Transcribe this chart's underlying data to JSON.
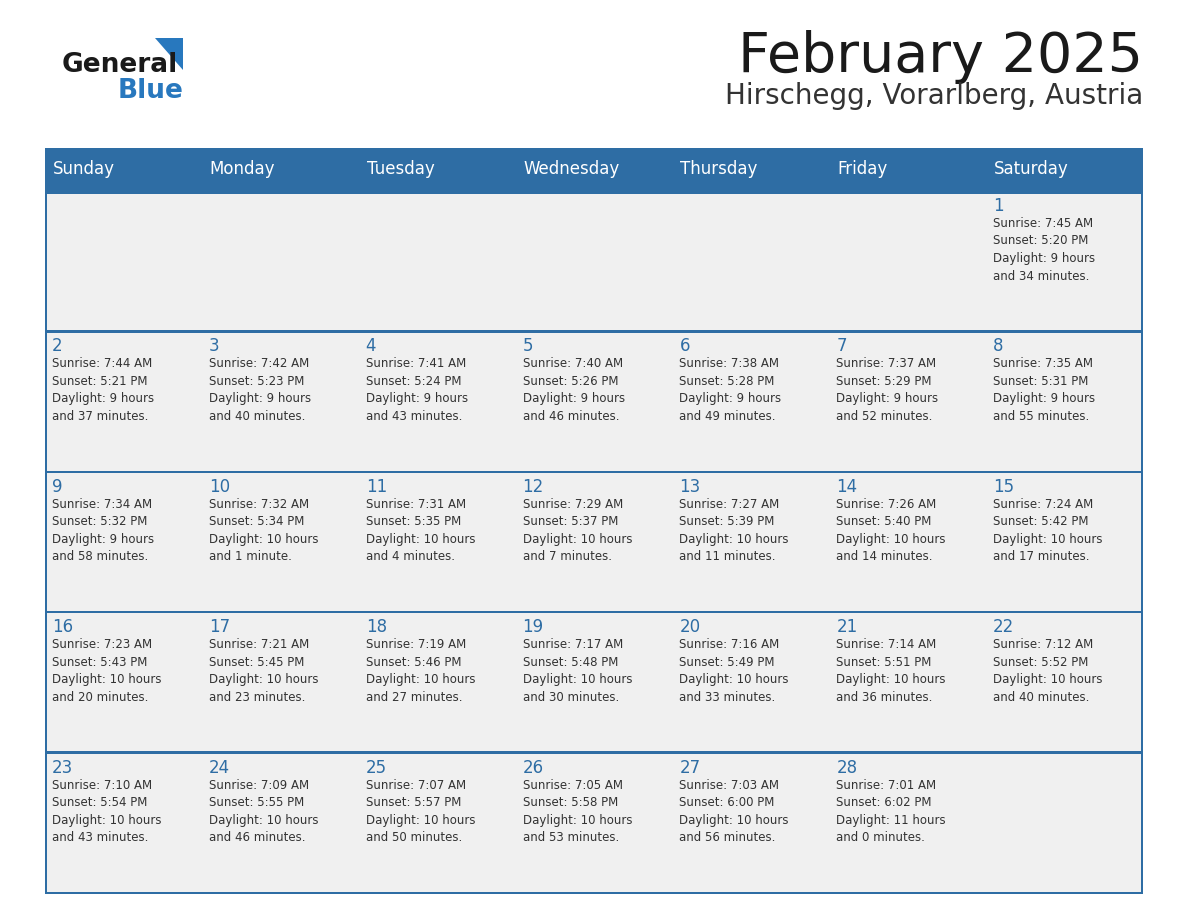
{
  "title": "February 2025",
  "subtitle": "Hirschegg, Vorarlberg, Austria",
  "header_bg_color": "#2E6DA4",
  "header_text_color": "#FFFFFF",
  "cell_bg_color": "#F0F0F0",
  "day_number_color": "#2E6DA4",
  "text_color": "#333333",
  "border_color": "#2E6DA4",
  "days_of_week": [
    "Sunday",
    "Monday",
    "Tuesday",
    "Wednesday",
    "Thursday",
    "Friday",
    "Saturday"
  ],
  "weeks": [
    [
      {
        "day": 0,
        "text": ""
      },
      {
        "day": 0,
        "text": ""
      },
      {
        "day": 0,
        "text": ""
      },
      {
        "day": 0,
        "text": ""
      },
      {
        "day": 0,
        "text": ""
      },
      {
        "day": 0,
        "text": ""
      },
      {
        "day": 1,
        "text": "Sunrise: 7:45 AM\nSunset: 5:20 PM\nDaylight: 9 hours\nand 34 minutes."
      }
    ],
    [
      {
        "day": 2,
        "text": "Sunrise: 7:44 AM\nSunset: 5:21 PM\nDaylight: 9 hours\nand 37 minutes."
      },
      {
        "day": 3,
        "text": "Sunrise: 7:42 AM\nSunset: 5:23 PM\nDaylight: 9 hours\nand 40 minutes."
      },
      {
        "day": 4,
        "text": "Sunrise: 7:41 AM\nSunset: 5:24 PM\nDaylight: 9 hours\nand 43 minutes."
      },
      {
        "day": 5,
        "text": "Sunrise: 7:40 AM\nSunset: 5:26 PM\nDaylight: 9 hours\nand 46 minutes."
      },
      {
        "day": 6,
        "text": "Sunrise: 7:38 AM\nSunset: 5:28 PM\nDaylight: 9 hours\nand 49 minutes."
      },
      {
        "day": 7,
        "text": "Sunrise: 7:37 AM\nSunset: 5:29 PM\nDaylight: 9 hours\nand 52 minutes."
      },
      {
        "day": 8,
        "text": "Sunrise: 7:35 AM\nSunset: 5:31 PM\nDaylight: 9 hours\nand 55 minutes."
      }
    ],
    [
      {
        "day": 9,
        "text": "Sunrise: 7:34 AM\nSunset: 5:32 PM\nDaylight: 9 hours\nand 58 minutes."
      },
      {
        "day": 10,
        "text": "Sunrise: 7:32 AM\nSunset: 5:34 PM\nDaylight: 10 hours\nand 1 minute."
      },
      {
        "day": 11,
        "text": "Sunrise: 7:31 AM\nSunset: 5:35 PM\nDaylight: 10 hours\nand 4 minutes."
      },
      {
        "day": 12,
        "text": "Sunrise: 7:29 AM\nSunset: 5:37 PM\nDaylight: 10 hours\nand 7 minutes."
      },
      {
        "day": 13,
        "text": "Sunrise: 7:27 AM\nSunset: 5:39 PM\nDaylight: 10 hours\nand 11 minutes."
      },
      {
        "day": 14,
        "text": "Sunrise: 7:26 AM\nSunset: 5:40 PM\nDaylight: 10 hours\nand 14 minutes."
      },
      {
        "day": 15,
        "text": "Sunrise: 7:24 AM\nSunset: 5:42 PM\nDaylight: 10 hours\nand 17 minutes."
      }
    ],
    [
      {
        "day": 16,
        "text": "Sunrise: 7:23 AM\nSunset: 5:43 PM\nDaylight: 10 hours\nand 20 minutes."
      },
      {
        "day": 17,
        "text": "Sunrise: 7:21 AM\nSunset: 5:45 PM\nDaylight: 10 hours\nand 23 minutes."
      },
      {
        "day": 18,
        "text": "Sunrise: 7:19 AM\nSunset: 5:46 PM\nDaylight: 10 hours\nand 27 minutes."
      },
      {
        "day": 19,
        "text": "Sunrise: 7:17 AM\nSunset: 5:48 PM\nDaylight: 10 hours\nand 30 minutes."
      },
      {
        "day": 20,
        "text": "Sunrise: 7:16 AM\nSunset: 5:49 PM\nDaylight: 10 hours\nand 33 minutes."
      },
      {
        "day": 21,
        "text": "Sunrise: 7:14 AM\nSunset: 5:51 PM\nDaylight: 10 hours\nand 36 minutes."
      },
      {
        "day": 22,
        "text": "Sunrise: 7:12 AM\nSunset: 5:52 PM\nDaylight: 10 hours\nand 40 minutes."
      }
    ],
    [
      {
        "day": 23,
        "text": "Sunrise: 7:10 AM\nSunset: 5:54 PM\nDaylight: 10 hours\nand 43 minutes."
      },
      {
        "day": 24,
        "text": "Sunrise: 7:09 AM\nSunset: 5:55 PM\nDaylight: 10 hours\nand 46 minutes."
      },
      {
        "day": 25,
        "text": "Sunrise: 7:07 AM\nSunset: 5:57 PM\nDaylight: 10 hours\nand 50 minutes."
      },
      {
        "day": 26,
        "text": "Sunrise: 7:05 AM\nSunset: 5:58 PM\nDaylight: 10 hours\nand 53 minutes."
      },
      {
        "day": 27,
        "text": "Sunrise: 7:03 AM\nSunset: 6:00 PM\nDaylight: 10 hours\nand 56 minutes."
      },
      {
        "day": 28,
        "text": "Sunrise: 7:01 AM\nSunset: 6:02 PM\nDaylight: 11 hours\nand 0 minutes."
      },
      {
        "day": 0,
        "text": ""
      }
    ]
  ],
  "logo_general_color": "#1a1a1a",
  "logo_blue_color": "#2878BE",
  "logo_triangle_color": "#2878BE",
  "fig_width": 11.88,
  "fig_height": 9.18,
  "dpi": 100
}
